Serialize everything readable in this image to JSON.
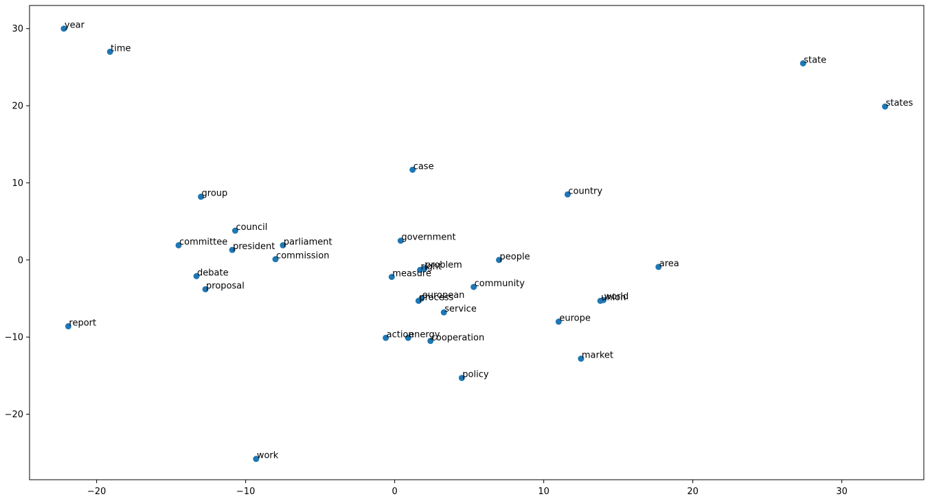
{
  "chart_data": {
    "type": "scatter",
    "title": "",
    "xlabel": "",
    "ylabel": "",
    "xlim": [
      -24.5,
      35.5
    ],
    "ylim": [
      -28.5,
      33
    ],
    "xticks": [
      -20,
      -10,
      0,
      10,
      20,
      30
    ],
    "yticks": [
      -20,
      -10,
      0,
      10,
      20,
      30
    ],
    "grid": false,
    "legend": "none",
    "marker_color": "#1f77b4",
    "points": [
      {
        "label": "year",
        "x": -22.2,
        "y": 30.0
      },
      {
        "label": "time",
        "x": -19.1,
        "y": 27.0
      },
      {
        "label": "state",
        "x": 27.4,
        "y": 25.5
      },
      {
        "label": "states",
        "x": 32.9,
        "y": 19.9
      },
      {
        "label": "case",
        "x": 1.2,
        "y": 11.7
      },
      {
        "label": "group",
        "x": -13.0,
        "y": 8.2
      },
      {
        "label": "country",
        "x": 11.6,
        "y": 8.5
      },
      {
        "label": "council",
        "x": -10.7,
        "y": 3.8
      },
      {
        "label": "government",
        "x": 0.4,
        "y": 2.5
      },
      {
        "label": "committee",
        "x": -14.5,
        "y": 1.9
      },
      {
        "label": "parliament",
        "x": -7.5,
        "y": 1.9
      },
      {
        "label": "president",
        "x": -10.9,
        "y": 1.3
      },
      {
        "label": "commission",
        "x": -8.0,
        "y": 0.1
      },
      {
        "label": "people",
        "x": 7.0,
        "y": 0.0
      },
      {
        "label": "area",
        "x": 17.7,
        "y": -0.9
      },
      {
        "label": "right",
        "x": 1.7,
        "y": -1.3
      },
      {
        "label": "problem",
        "x": 2.0,
        "y": -1.1
      },
      {
        "label": "measure",
        "x": -0.2,
        "y": -2.2
      },
      {
        "label": "debate",
        "x": -13.3,
        "y": -2.1
      },
      {
        "label": "proposal",
        "x": -12.7,
        "y": -3.8
      },
      {
        "label": "community",
        "x": 5.3,
        "y": -3.5
      },
      {
        "label": "european",
        "x": 1.8,
        "y": -5.0
      },
      {
        "label": "process",
        "x": 1.6,
        "y": -5.3
      },
      {
        "label": "union",
        "x": 13.8,
        "y": -5.3
      },
      {
        "label": "world",
        "x": 14.0,
        "y": -5.2
      },
      {
        "label": "service",
        "x": 3.3,
        "y": -6.8
      },
      {
        "label": "europe",
        "x": 11.0,
        "y": -8.0
      },
      {
        "label": "report",
        "x": -21.9,
        "y": -8.6
      },
      {
        "label": "action",
        "x": -0.6,
        "y": -10.1
      },
      {
        "label": "energy",
        "x": 0.9,
        "y": -10.1
      },
      {
        "label": "cooperation",
        "x": 2.4,
        "y": -10.5
      },
      {
        "label": "market",
        "x": 12.5,
        "y": -12.8
      },
      {
        "label": "policy",
        "x": 4.5,
        "y": -15.3
      },
      {
        "label": "work",
        "x": -9.3,
        "y": -25.8
      }
    ]
  }
}
